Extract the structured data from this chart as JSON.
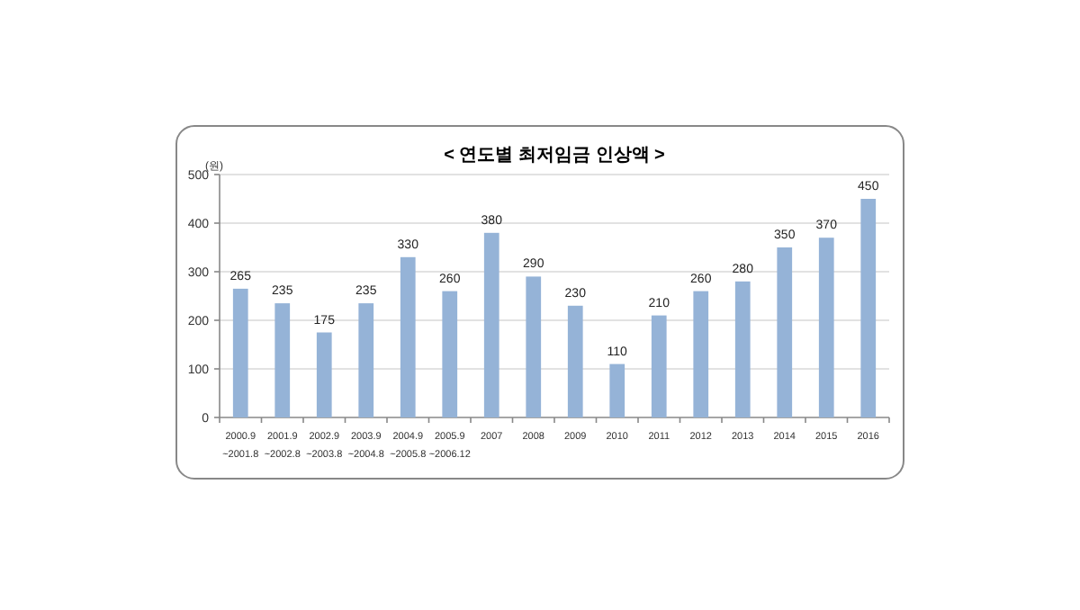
{
  "chart_data": {
    "type": "bar",
    "title": "< 연도별 최저임금 인상액 >",
    "ylabel": "(원)",
    "categories": [
      "2000.9\n~2001.8",
      "2001.9\n~2002.8",
      "2002.9\n~2003.8",
      "2003.9\n~2004.8",
      "2004.9\n~2005.8",
      "2005.9\n~2006.12",
      "2007",
      "2008",
      "2009",
      "2010",
      "2011",
      "2012",
      "2013",
      "2014",
      "2015",
      "2016"
    ],
    "values": [
      265,
      235,
      175,
      235,
      330,
      260,
      380,
      290,
      230,
      110,
      210,
      260,
      280,
      350,
      370,
      450
    ],
    "color": "#95b3d7",
    "ylim": [
      0,
      500
    ],
    "yticks": [
      0,
      100,
      200,
      300,
      400,
      500
    ],
    "grid": "y",
    "data_labels": true
  }
}
